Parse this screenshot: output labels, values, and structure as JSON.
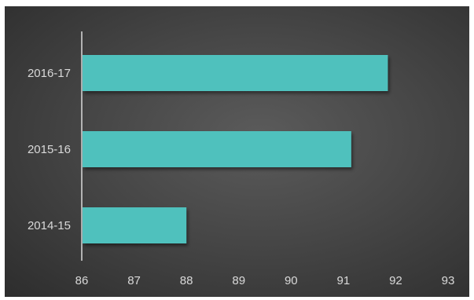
{
  "chart_data": {
    "type": "bar",
    "orientation": "horizontal",
    "title": "",
    "xlabel": "",
    "ylabel": "",
    "categories": [
      "2016-17",
      "2015-16",
      "2014-15"
    ],
    "values": [
      91.85,
      91.15,
      88.0
    ],
    "xlim": [
      86,
      93
    ],
    "xticks": [
      "86",
      "87",
      "88",
      "89",
      "90",
      "91",
      "92",
      "93"
    ],
    "grid": false,
    "legend": "none",
    "colors": {
      "bar": "#4fc1bd",
      "bar_shadow": "#1f4a48",
      "axis_line": "#d9d9d9",
      "text": "#d9d9d9",
      "background": "#474747"
    }
  }
}
